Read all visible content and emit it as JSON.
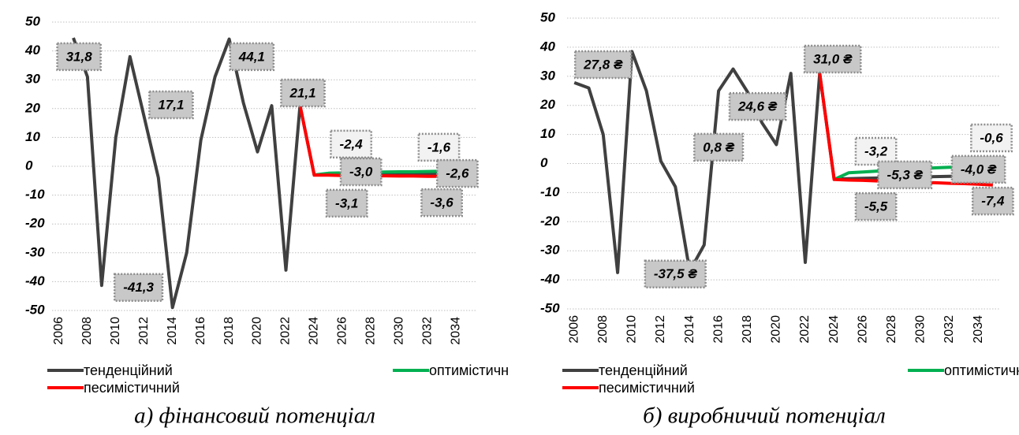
{
  "chart_data": [
    {
      "type": "line",
      "caption": "а) фінансовий потенціал",
      "x": [
        2006,
        2007,
        2008,
        2009,
        2010,
        2011,
        2012,
        2013,
        2014,
        2015,
        2016,
        2017,
        2018,
        2019,
        2020,
        2021,
        2022,
        2023,
        2024,
        2025,
        2026,
        2027,
        2028,
        2029,
        2030,
        2031,
        2032,
        2033,
        2034,
        2035
      ],
      "xlim": [
        2005.5,
        2035.5
      ],
      "xticks": [
        2006,
        2008,
        2010,
        2012,
        2014,
        2016,
        2018,
        2020,
        2022,
        2024,
        2026,
        2028,
        2030,
        2032,
        2034
      ],
      "ylim": [
        -50,
        50
      ],
      "yticks": [
        50,
        40,
        30,
        20,
        10,
        0,
        -10,
        -20,
        -30,
        -40,
        -50
      ],
      "grid": true,
      "legend": "bottom",
      "series": [
        {
          "name": "тенденційний",
          "color": "#404040",
          "values": [
            null,
            44.5,
            31,
            -41.3,
            10,
            38,
            17.1,
            -4,
            -49,
            -30,
            9,
            31,
            44.1,
            22,
            5,
            21,
            -36,
            21.1,
            -3.0,
            -2.9,
            -2.9,
            -2.9,
            -2.8,
            -2.8,
            -2.8,
            -2.7,
            -2.7,
            -2.7,
            -2.6,
            -2.6
          ]
        },
        {
          "name": "оптимістичний",
          "color": "#00b050",
          "values": [
            null,
            null,
            null,
            null,
            null,
            null,
            null,
            null,
            null,
            null,
            null,
            null,
            null,
            null,
            null,
            null,
            null,
            null,
            -3.0,
            -2.4,
            -2.3,
            -2.2,
            -2.1,
            -2.0,
            -1.9,
            -1.9,
            -1.8,
            -1.7,
            -1.7,
            -1.6
          ]
        },
        {
          "name": "песимістичний",
          "color": "#ff0000",
          "values": [
            null,
            null,
            null,
            null,
            null,
            null,
            null,
            null,
            null,
            null,
            null,
            null,
            null,
            null,
            null,
            null,
            null,
            21.1,
            -3.1,
            -3.1,
            -3.2,
            -3.2,
            -3.3,
            -3.3,
            -3.4,
            -3.4,
            -3.5,
            -3.5,
            -3.6,
            -3.6
          ]
        }
      ],
      "annotations": [
        {
          "text": "31,8",
          "x": 2007.4,
          "y": 38,
          "style": "dark"
        },
        {
          "text": "-41,3",
          "x": 2011.6,
          "y": -42,
          "style": "dark"
        },
        {
          "text": "17,1",
          "x": 2013.9,
          "y": 21.3,
          "style": "dark"
        },
        {
          "text": "44,1",
          "x": 2019.6,
          "y": 38,
          "style": "dark"
        },
        {
          "text": "21,1",
          "x": 2023.2,
          "y": 25.4,
          "style": "dark"
        },
        {
          "text": "-2,4",
          "x": 2026.6,
          "y": 7.7,
          "style": "light"
        },
        {
          "text": "-3,0",
          "x": 2027.3,
          "y": -1.9,
          "style": "dark"
        },
        {
          "text": "-3,1",
          "x": 2026.3,
          "y": -12.8,
          "style": "dark"
        },
        {
          "text": "-1,6",
          "x": 2032.8,
          "y": 6.6,
          "style": "light"
        },
        {
          "text": "-2,6",
          "x": 2034.1,
          "y": -2.5,
          "style": "dark"
        },
        {
          "text": "-3,6",
          "x": 2033,
          "y": -12.6,
          "style": "dark"
        }
      ]
    },
    {
      "type": "line",
      "caption": "б) виробничий потенціал",
      "x": [
        2006,
        2007,
        2008,
        2009,
        2010,
        2011,
        2012,
        2013,
        2014,
        2015,
        2016,
        2017,
        2018,
        2019,
        2020,
        2021,
        2022,
        2023,
        2024,
        2025,
        2026,
        2027,
        2028,
        2029,
        2030,
        2031,
        2032,
        2033,
        2034,
        2035
      ],
      "xlim": [
        2005.5,
        2035.5
      ],
      "xticks": [
        2006,
        2008,
        2010,
        2012,
        2014,
        2016,
        2018,
        2020,
        2022,
        2024,
        2026,
        2028,
        2030,
        2032,
        2034
      ],
      "ylim": [
        -50,
        50
      ],
      "yticks": [
        50,
        40,
        30,
        20,
        10,
        0,
        -10,
        -20,
        -30,
        -40,
        -50
      ],
      "grid": true,
      "legend": "bottom",
      "series": [
        {
          "name": "тенденційний",
          "color": "#404040",
          "values": [
            27.8,
            26,
            10,
            -37.5,
            38.5,
            25,
            0.8,
            -8,
            -37,
            -28,
            25,
            32.5,
            24.6,
            14,
            6.5,
            31,
            -34,
            31.0,
            -5.3,
            -5.2,
            -5.1,
            -5.0,
            -4.9,
            -4.8,
            -4.6,
            -4.5,
            -4.4,
            -4.3,
            -4.1,
            -4.0
          ]
        },
        {
          "name": "оптимістичний",
          "color": "#00b050",
          "values": [
            null,
            null,
            null,
            null,
            null,
            null,
            null,
            null,
            null,
            null,
            null,
            null,
            null,
            null,
            null,
            null,
            null,
            null,
            -5.5,
            -3.2,
            -2.9,
            -2.6,
            -2.3,
            -2.0,
            -1.8,
            -1.5,
            -1.3,
            -1.1,
            -0.8,
            -0.6
          ]
        },
        {
          "name": "песимістичний",
          "color": "#ff0000",
          "values": [
            null,
            null,
            null,
            null,
            null,
            null,
            null,
            null,
            null,
            null,
            null,
            null,
            null,
            null,
            null,
            null,
            null,
            31.0,
            -5.5,
            -5.7,
            -5.8,
            -6.0,
            -6.1,
            -6.3,
            -6.5,
            -6.6,
            -6.8,
            -6.9,
            -7.1,
            -7.4
          ]
        }
      ],
      "annotations": [
        {
          "text": "27,8 ₴",
          "x": 2008,
          "y": 34,
          "style": "dark"
        },
        {
          "text": "-37,5 ₴",
          "x": 2013,
          "y": -38,
          "style": "dark"
        },
        {
          "text": "0,8 ₴",
          "x": 2016,
          "y": 5.6,
          "style": "dark"
        },
        {
          "text": "24,6 ₴",
          "x": 2018.7,
          "y": 19.6,
          "style": "dark"
        },
        {
          "text": "31,0 ₴",
          "x": 2023.9,
          "y": 35.9,
          "style": "dark"
        },
        {
          "text": "-3,2",
          "x": 2026.9,
          "y": 4.2,
          "style": "light"
        },
        {
          "text": "-5,3 ₴",
          "x": 2028.9,
          "y": -3.9,
          "style": "dark"
        },
        {
          "text": "-5,5",
          "x": 2026.9,
          "y": -14.8,
          "style": "dark"
        },
        {
          "text": "-0,6",
          "x": 2034.9,
          "y": 8.8,
          "style": "light"
        },
        {
          "text": "-4,0 ₴",
          "x": 2034,
          "y": -2,
          "style": "dark"
        },
        {
          "text": "-7,4",
          "x": 2035,
          "y": -12.9,
          "style": "dark"
        }
      ]
    }
  ]
}
